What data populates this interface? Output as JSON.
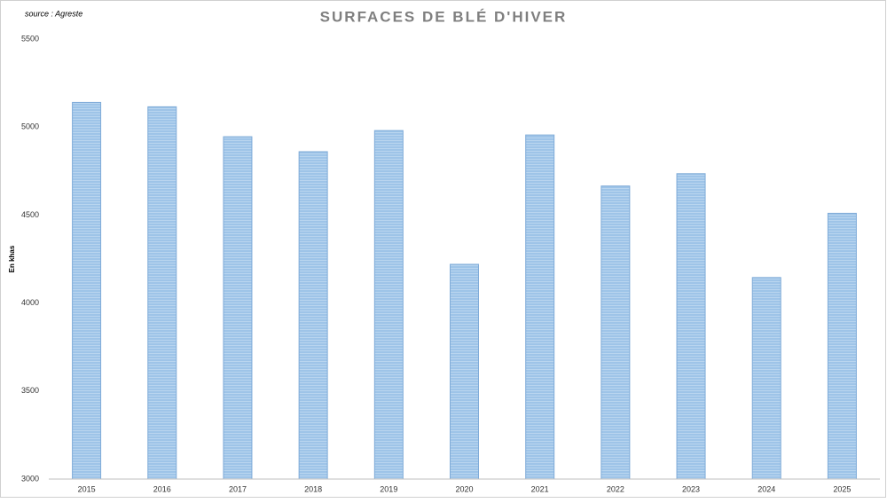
{
  "chart_data": {
    "type": "bar",
    "title": "SURFACES DE BLÉ D'HIVER",
    "source": "source : Agreste",
    "y_label": "En khas",
    "categories": [
      "2015",
      "2016",
      "2017",
      "2018",
      "2019",
      "2020",
      "2021",
      "2022",
      "2023",
      "2024",
      "2025"
    ],
    "values": [
      5140,
      5115,
      4945,
      4860,
      4980,
      4220,
      4955,
      4665,
      4735,
      4145,
      4510
    ],
    "color": "#9ec4e8",
    "ylim": [
      3000,
      5500
    ],
    "yticks": [
      3000,
      3500,
      4000,
      4500,
      5000,
      5500
    ],
    "grid": false
  }
}
